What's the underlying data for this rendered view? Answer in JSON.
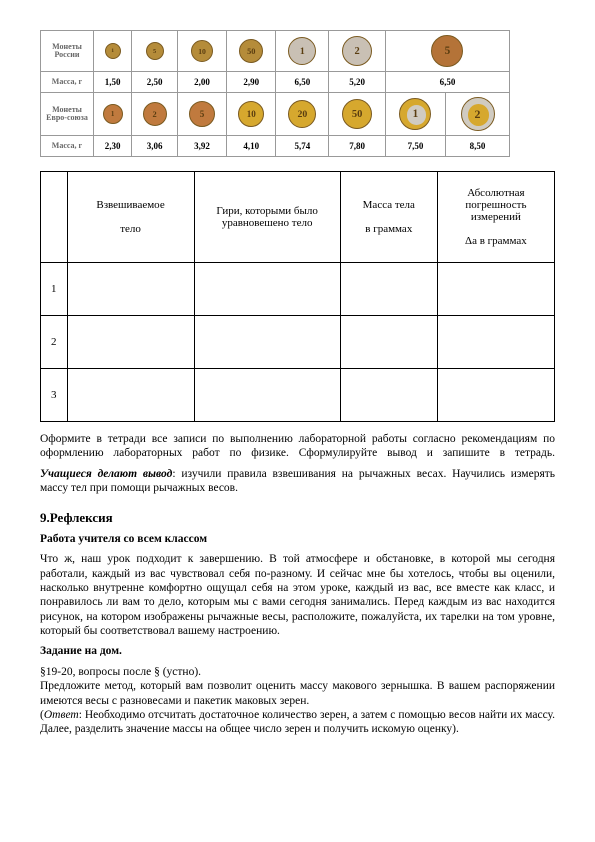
{
  "coins": {
    "row1_label": "Монеты России",
    "row2_label": "Масса, г",
    "row3_label": "Монеты Евро-союза",
    "row4_label": "Масса, г",
    "russia": {
      "diameters": [
        16,
        18,
        22,
        24,
        28,
        30,
        32
      ],
      "colors": [
        "#b58c3a",
        "#b58c3a",
        "#b58c3a",
        "#b58c3a",
        "#c9c0b4",
        "#c9c0b4",
        "#b47338"
      ],
      "labels": [
        "1",
        "5",
        "10",
        "50",
        "1",
        "2",
        "5"
      ],
      "mass": [
        "1,50",
        "2,50",
        "2,00",
        "2,90",
        "6,50",
        "5,20",
        "6,50"
      ]
    },
    "euro": {
      "diameters": [
        20,
        24,
        26,
        26,
        28,
        30,
        32,
        34
      ],
      "outer": [
        "#c07a3e",
        "#c07a3e",
        "#c07a3e",
        "#d6a82e",
        "#d6a82e",
        "#d6a82e",
        "#d6a82e",
        "#d0cbc1"
      ],
      "inner": [
        "",
        "",
        "",
        "",
        "",
        "",
        "#d0cbc1",
        "#d6a82e"
      ],
      "labels": [
        "1",
        "2",
        "5",
        "10",
        "20",
        "50",
        "1",
        "2"
      ],
      "mass": [
        "2,30",
        "3,06",
        "3,92",
        "4,10",
        "5,74",
        "7,80",
        "7,50",
        "8,50"
      ]
    }
  },
  "meas_headers": {
    "c0": "",
    "c1": "Взвешиваемое\nтело",
    "c2": "Гири, которыми было уравновешено тело",
    "c3": "Масса тела\nв граммах",
    "c4": "Абсолютная погрешность измерений\nΔа в граммах"
  },
  "rows": [
    "1",
    "2",
    "3"
  ],
  "text": {
    "para1": "Оформите в тетради все записи по выполнению лабораторной работы согласно рекомендациям по оформлению лабораторных работ по физике. Сформулируйте вывод и запишите в тетрадь.",
    "para2a": "Учащиеся делают вывод",
    "para2b": ": изучили правила взвешивания на рычажных весах. Научились измерять массу тел при помощи рычажных весов.",
    "h2": "9.Рефлексия",
    "sub": "Работа учителя со всем классом",
    "para3": "Что ж, наш урок подходит к завершению. В той атмосфере и обстановке, в которой мы сегодня работали, каждый из вас чувствовал себя по-разному. И сейчас мне бы хотелось, чтобы вы оценили, насколько внутренне комфортно ощущал себя на этом уроке, каждый из вас, все вместе как класс, и понравилось ли вам то дело, которым мы с вами сегодня занимались. Перед каждым из вас находится рисунок, на котором изображены рычажные весы, расположите, пожалуйста, их тарелки на том уровне, который бы соответствовал вашему настроению.",
    "hw_head": "Задание на дом.",
    "hw1": "§19-20, вопросы после § (устно).",
    "hw2": "Предложите метод, который вам позволит оценить массу макового зернышка. В вашем распоряжении имеются весы с разновесами и пакетик маковых зерен.",
    "hw3a": "(",
    "hw3b": "Ответ",
    "hw3c": ": Необходимо отсчитать достаточное количество зерен, а затем с помощью весов найти их массу. Далее, разделить значение массы на общее число зерен и получить искомую оценку)."
  }
}
